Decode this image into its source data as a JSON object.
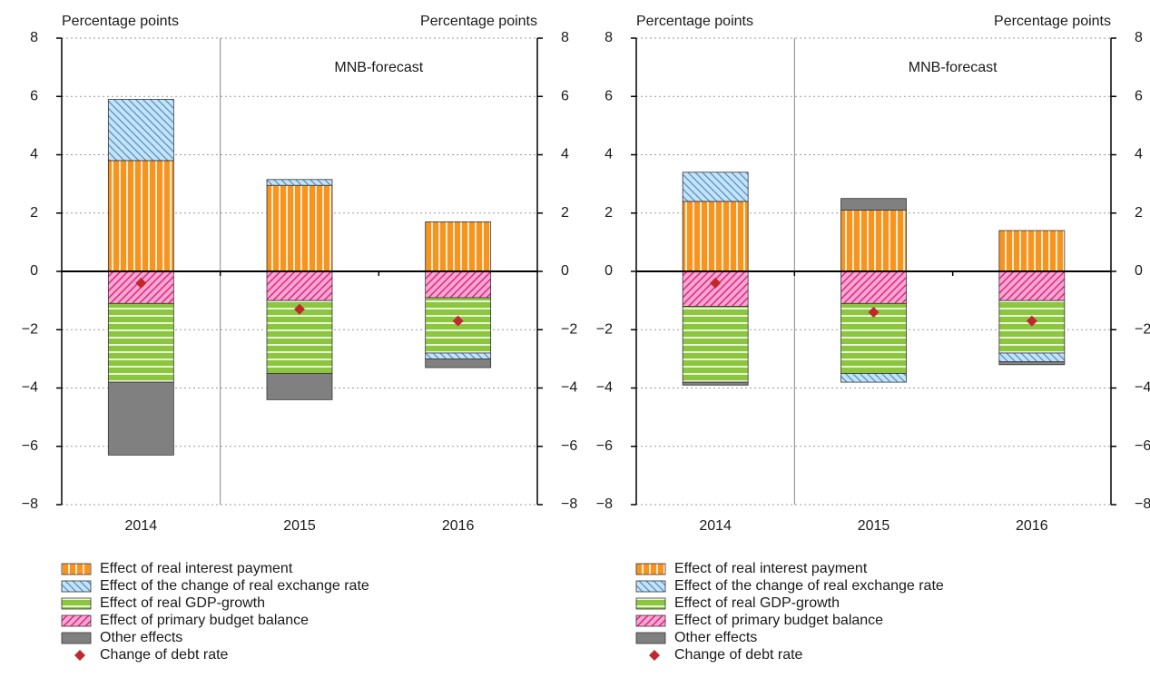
{
  "chart_data": [
    {
      "type": "bar",
      "stacked": true,
      "grid": true,
      "ylabel": "Percentage points",
      "y2label": "Percentage points",
      "annotation": "MNB-forecast",
      "categories": [
        "2014",
        "2015",
        "2016"
      ],
      "series": [
        {
          "name": "Effect of real interest payment",
          "color": "#f7941d",
          "hatch": "vertical",
          "hatch_color": "#ffffff",
          "values": [
            3.8,
            2.95,
            1.7
          ]
        },
        {
          "name": "Effect of the change of real exchange rate",
          "color": "#c6e3f6",
          "hatch": "diagonal-down",
          "hatch_color": "#4a8fc9",
          "values": [
            2.1,
            0.2,
            -0.2
          ]
        },
        {
          "name": "Effect of real GDP-growth",
          "color": "#8cc63f",
          "hatch": "horizontal",
          "hatch_color": "#ffffff",
          "values": [
            -2.7,
            -2.5,
            -1.9
          ]
        },
        {
          "name": "Effect of primary budget balance",
          "color": "#f7a8cf",
          "hatch": "diagonal-up",
          "hatch_color": "#e0218a",
          "values": [
            -1.1,
            -1.0,
            -0.9
          ]
        },
        {
          "name": "Other effects",
          "color": "#808080",
          "values": [
            -2.5,
            -0.9,
            -0.3
          ]
        }
      ],
      "markers": {
        "name": "Change of debt rate",
        "color": "#c0282d",
        "values": [
          -0.4,
          -1.3,
          -1.7
        ]
      },
      "ylim": [
        -8,
        8
      ],
      "yticks": [
        {
          "value": -8,
          "label": "−8"
        },
        {
          "value": -6,
          "label": "−6"
        },
        {
          "value": -4,
          "label": "−4"
        },
        {
          "value": -2,
          "label": "−2"
        },
        0,
        2,
        4,
        6,
        8
      ],
      "y2lim": [
        -8,
        8
      ],
      "y2ticks": [
        {
          "value": -8,
          "label": "−8"
        },
        {
          "value": -6,
          "label": "−6"
        },
        {
          "value": -4,
          "label": "−4"
        },
        {
          "value": -2,
          "label": "−2"
        },
        0,
        2,
        4,
        6,
        8
      ]
    },
    {
      "type": "bar",
      "stacked": true,
      "grid": true,
      "ylabel": "Percentage points",
      "y2label": "Percentage points",
      "annotation": "MNB-forecast",
      "categories": [
        "2014",
        "2015",
        "2016"
      ],
      "series": [
        {
          "name": "Effect of real interest payment",
          "color": "#f7941d",
          "hatch": "vertical",
          "hatch_color": "#ffffff",
          "values": [
            2.4,
            2.1,
            1.4
          ]
        },
        {
          "name": "Effect of the change of real exchange rate",
          "color": "#c6e3f6",
          "hatch": "diagonal-down",
          "hatch_color": "#4a8fc9",
          "values": [
            1.0,
            -0.3,
            -0.3
          ]
        },
        {
          "name": "Effect of real GDP-growth",
          "color": "#8cc63f",
          "hatch": "horizontal",
          "hatch_color": "#ffffff",
          "values": [
            -2.6,
            -2.4,
            -1.8
          ]
        },
        {
          "name": "Effect of primary budget balance",
          "color": "#f7a8cf",
          "hatch": "diagonal-up",
          "hatch_color": "#e0218a",
          "values": [
            -1.2,
            -1.1,
            -1.0
          ]
        },
        {
          "name": "Other effects",
          "color": "#808080",
          "values": [
            -0.1,
            0.4,
            -0.1
          ]
        }
      ],
      "markers": {
        "name": "Change of debt rate",
        "color": "#c0282d",
        "values": [
          -0.4,
          -1.4,
          -1.7
        ]
      },
      "ylim": [
        -8,
        8
      ],
      "yticks": [
        {
          "value": -8,
          "label": "−8"
        },
        {
          "value": -6,
          "label": "−6"
        },
        {
          "value": -4,
          "label": "−4"
        },
        {
          "value": -2,
          "label": "−2"
        },
        0,
        2,
        4,
        6,
        8
      ],
      "y2lim": [
        -8,
        8
      ],
      "y2ticks": [
        {
          "value": -8,
          "label": "−8"
        },
        {
          "value": -6,
          "label": "−6"
        },
        {
          "value": -4,
          "label": "−4"
        },
        {
          "value": -2,
          "label": "−2"
        },
        0,
        2,
        4,
        6,
        8
      ]
    }
  ]
}
